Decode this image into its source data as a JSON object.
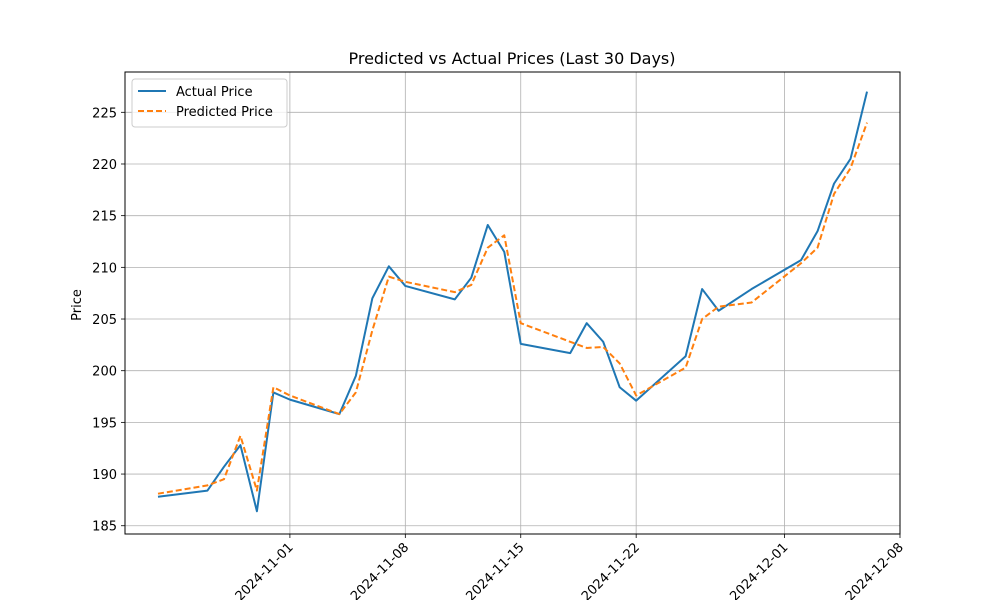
{
  "chart_data": {
    "type": "line",
    "title": "Predicted vs Actual Prices (Last 30 Days)",
    "xlabel": "",
    "ylabel": "Price",
    "x_dates": [
      "2024-10-24",
      "2024-10-27",
      "2024-10-28",
      "2024-10-29",
      "2024-10-30",
      "2024-10-31",
      "2024-11-01",
      "2024-11-04",
      "2024-11-05",
      "2024-11-06",
      "2024-11-07",
      "2024-11-08",
      "2024-11-11",
      "2024-11-12",
      "2024-11-13",
      "2024-11-14",
      "2024-11-15",
      "2024-11-18",
      "2024-11-19",
      "2024-11-20",
      "2024-11-21",
      "2024-11-22",
      "2024-11-25",
      "2024-11-26",
      "2024-11-27",
      "2024-11-29",
      "2024-12-02",
      "2024-12-03",
      "2024-12-04",
      "2024-12-05",
      "2024-12-06"
    ],
    "series": [
      {
        "name": "Actual Price",
        "color": "#1f77b4",
        "style": "solid",
        "values": [
          187.8,
          188.4,
          190.7,
          192.8,
          186.4,
          197.9,
          197.2,
          195.8,
          199.5,
          207.0,
          210.1,
          208.2,
          206.9,
          209.0,
          214.1,
          211.5,
          202.6,
          201.7,
          204.6,
          202.8,
          198.4,
          197.1,
          201.4,
          207.9,
          205.8,
          207.9,
          210.7,
          213.5,
          218.1,
          220.5,
          227.0
        ]
      },
      {
        "name": "Predicted Price",
        "color": "#ff7f0e",
        "style": "dashed",
        "values": [
          188.1,
          188.9,
          189.5,
          193.7,
          188.4,
          198.4,
          197.6,
          195.8,
          197.9,
          203.9,
          209.1,
          208.6,
          207.6,
          208.3,
          211.9,
          213.1,
          204.6,
          202.8,
          202.2,
          202.3,
          200.7,
          197.6,
          200.3,
          205.0,
          206.2,
          206.6,
          210.4,
          211.9,
          217.1,
          219.6,
          224.0
        ]
      }
    ],
    "xticks": [
      "2024-11-01",
      "2024-11-08",
      "2024-11-15",
      "2024-11-22",
      "2024-12-01",
      "2024-12-08"
    ],
    "yticks": [
      185,
      190,
      195,
      200,
      205,
      210,
      215,
      220,
      225
    ],
    "ylim": [
      184.2,
      228.9
    ],
    "xlim": [
      "2024-10-22",
      "2024-12-08"
    ],
    "grid": true,
    "legend_position": "top-left"
  }
}
